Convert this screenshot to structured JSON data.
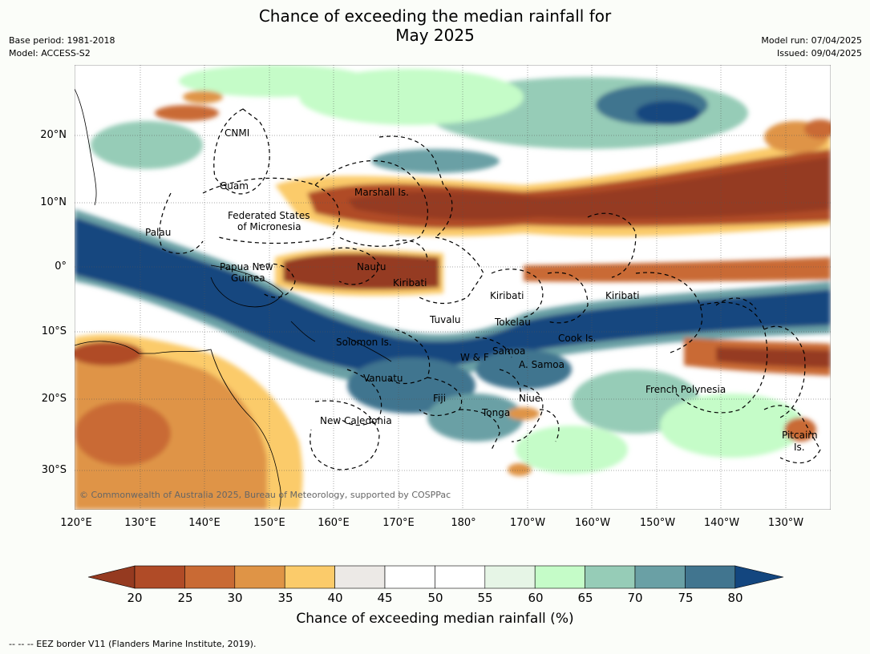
{
  "title_line1": "Chance of exceeding the median rainfall for",
  "title_line2": "May 2025",
  "base_period": "Base period: 1981-2018",
  "model": "Model: ACCESS-S2",
  "model_run": "Model run: 07/04/2025",
  "issued": "Issued: 09/04/2025",
  "lat_labels": [
    "20°N",
    "10°N",
    "0°",
    "10°S",
    "20°S",
    "30°S"
  ],
  "lon_labels": [
    "120°E",
    "130°E",
    "140°E",
    "150°E",
    "160°E",
    "170°E",
    "180°",
    "170°W",
    "160°W",
    "150°W",
    "140°W",
    "130°W"
  ],
  "regions": [
    "CNMI",
    "Guam",
    "Marshall Is.",
    "Federated States",
    "of Micronesia",
    "Palau",
    "Papua New",
    "Guinea",
    "Nauru",
    "Kiribati",
    "Kiribati",
    "Kiribati",
    "Tuvalu",
    "Tokelau",
    "Cook Is.",
    "Solomon Is.",
    "Samoa",
    "W & F",
    "A. Samoa",
    "Vanuatu",
    "Fiji",
    "Niue",
    "French Polynesia",
    "Tonga",
    "New Caledonia",
    "Pitcairn",
    "Is."
  ],
  "copyright": "© Commonwealth of Australia 2025, Bureau of Meteorology, supported by COSPPac",
  "colorbar": {
    "ticks": [
      "20",
      "25",
      "30",
      "35",
      "40",
      "45",
      "50",
      "55",
      "60",
      "65",
      "70",
      "75",
      "80"
    ],
    "colors": [
      "#953a20",
      "#b04b27",
      "#c96a34",
      "#df9446",
      "#fbcb6a",
      "#ece9e6",
      "#ffffff",
      "#ffffff",
      "#e6f5e6",
      "#c5fcc8",
      "#96ccb7",
      "#6aa0a5",
      "#41758f",
      "#13467f"
    ],
    "label": "Chance of exceeding median rainfall (%)"
  },
  "footer": "--  --  -- EEZ border V11 (Flanders Marine Institute, 2019)."
}
